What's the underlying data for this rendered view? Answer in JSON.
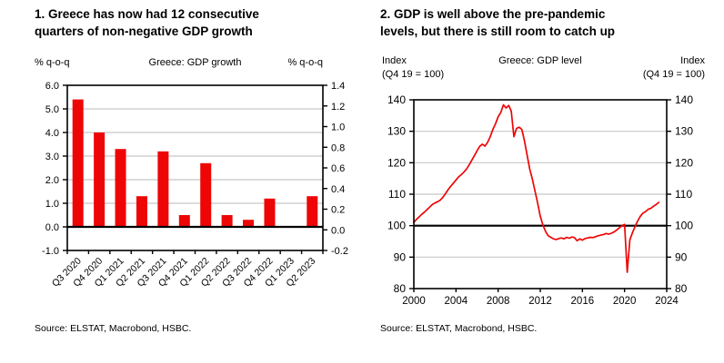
{
  "panels": {
    "left": {
      "title_line1": "1. Greece has now had 12 consecutive",
      "title_line2": "quarters of non-negative GDP growth",
      "ylabel_left": "% q-o-q",
      "subtitle": "Greece: GDP growth",
      "ylabel_right": "% q-o-q",
      "source": "Source: ELSTAT, Macrobond, HSBC."
    },
    "right": {
      "title_line1": "2. GDP is well above the pre-pandemic",
      "title_line2": "levels, but there is still room to catch up",
      "ylabel_left_line1": "Index",
      "ylabel_left_line2": "(Q4 19 = 100)",
      "subtitle": "Greece: GDP level",
      "ylabel_right_line1": "Index",
      "ylabel_right_line2": "(Q4 19 = 100)",
      "source": "Source: ELSTAT, Macrobond, HSBC."
    }
  },
  "colors": {
    "series_red": "#ee0505",
    "gridline": "#c8c8c8",
    "axis": "#000000",
    "text": "#000000",
    "background": "#ffffff"
  },
  "chart_data": [
    {
      "id": "greece-gdp-growth",
      "type": "bar",
      "title": "1. Greece has now had 12 consecutive quarters of non-negative GDP growth",
      "subtitle": "Greece: GDP growth",
      "ylabel_left": "% q-o-q",
      "ylabel_right": "% q-o-q",
      "categories": [
        "Q3 2020",
        "Q4 2020",
        "Q1 2021",
        "Q2 2021",
        "Q3 2021",
        "Q4 2021",
        "Q1 2022",
        "Q2 2022",
        "Q3 2022",
        "Q4 2022",
        "Q1 2023",
        "Q2 2023"
      ],
      "values": [
        5.4,
        4.0,
        3.3,
        1.3,
        3.2,
        0.5,
        2.7,
        0.5,
        0.3,
        1.2,
        0.0,
        1.3
      ],
      "grid": true,
      "zero_line": 0,
      "y_left": {
        "min": -1.0,
        "max": 6.0,
        "step": 1.0,
        "labels": [
          "-1.0",
          "0.0",
          "1.0",
          "2.0",
          "3.0",
          "4.0",
          "5.0",
          "6.0"
        ]
      },
      "y_right": {
        "min": -0.2,
        "max": 1.4,
        "step": 0.2,
        "labels": [
          "-0.2",
          "0.0",
          "0.2",
          "0.4",
          "0.6",
          "0.8",
          "1.0",
          "1.2",
          "1.4"
        ]
      },
      "source": "Source: ELSTAT, Macrobond, HSBC."
    },
    {
      "id": "greece-gdp-level",
      "type": "line",
      "title": "2. GDP is well above the pre-pandemic levels, but there is still room to catch up",
      "subtitle": "Greece: GDP level",
      "ylabel_left": "Index (Q4 19 = 100)",
      "ylabel_right": "Index (Q4 19 = 100)",
      "grid": true,
      "baseline": 100,
      "x_start_year": 2000,
      "x_freq_per_year": 4,
      "x_axis_range": [
        2000,
        2024
      ],
      "x_tick_years": [
        2000,
        2004,
        2008,
        2012,
        2016,
        2020,
        2024
      ],
      "x_tick_labels": [
        "2000",
        "2004",
        "2008",
        "2012",
        "2016",
        "2020",
        "2024"
      ],
      "y": {
        "min": 80,
        "max": 140,
        "step": 10,
        "labels": [
          "80",
          "90",
          "100",
          "110",
          "120",
          "130",
          "140"
        ]
      },
      "values": [
        101.0,
        102.0,
        102.8,
        103.6,
        104.3,
        105.1,
        105.9,
        106.7,
        107.2,
        107.6,
        108.1,
        109.0,
        110.2,
        111.4,
        112.5,
        113.5,
        114.5,
        115.5,
        116.2,
        117.0,
        118.0,
        119.3,
        120.8,
        122.3,
        123.8,
        125.2,
        125.9,
        125.3,
        126.5,
        128.3,
        130.6,
        132.4,
        134.6,
        136.0,
        138.4,
        137.4,
        138.2,
        136.4,
        128.3,
        130.9,
        131.3,
        130.6,
        127.0,
        122.5,
        118.0,
        114.8,
        111.0,
        107.2,
        103.0,
        100.2,
        98.2,
        96.8,
        96.3,
        95.8,
        95.6,
        95.9,
        96.1,
        95.8,
        96.3,
        96.0,
        96.4,
        96.2,
        95.2,
        95.8,
        95.4,
        95.9,
        96.1,
        96.3,
        96.2,
        96.5,
        96.8,
        97.0,
        97.2,
        97.5,
        97.3,
        97.6,
        98.0,
        98.6,
        99.3,
        100.0,
        100.4,
        85.2,
        95.5,
        97.8,
        99.8,
        101.5,
        103.0,
        104.0,
        104.5,
        105.2,
        105.5,
        106.2,
        106.7,
        107.4
      ],
      "source": "Source: ELSTAT, Macrobond, HSBC."
    }
  ]
}
